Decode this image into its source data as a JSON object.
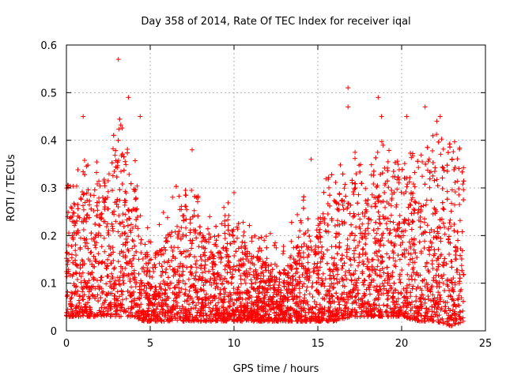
{
  "chart_data": {
    "type": "scatter",
    "title": "Day 358 of 2014, Rate Of TEC Index for receiver iqal",
    "xlabel": "GPS time / hours",
    "ylabel": "ROTI / TECUs",
    "xlim": [
      0,
      25
    ],
    "ylim": [
      0,
      0.6
    ],
    "xticks": [
      0,
      5,
      10,
      15,
      20,
      25
    ],
    "yticks": [
      0,
      0.1,
      0.2,
      0.3,
      0.4,
      0.5,
      0.6
    ],
    "xtick_labels": [
      "0",
      "5",
      "10",
      "15",
      "20",
      "25"
    ],
    "ytick_labels": [
      "0",
      "0.1",
      "0.2",
      "0.3",
      "0.4",
      "0.5",
      "0.6"
    ],
    "grid": true,
    "marker": "+",
    "marker_color": "#ff0000",
    "x_data_range": [
      0,
      23.7
    ],
    "outliers": [
      {
        "x": 3.1,
        "y": 0.57
      },
      {
        "x": 3.7,
        "y": 0.49
      },
      {
        "x": 4.4,
        "y": 0.45
      },
      {
        "x": 1.0,
        "y": 0.45
      },
      {
        "x": 7.5,
        "y": 0.38
      },
      {
        "x": 14.6,
        "y": 0.36
      },
      {
        "x": 16.8,
        "y": 0.51
      },
      {
        "x": 16.8,
        "y": 0.47
      },
      {
        "x": 18.6,
        "y": 0.49
      },
      {
        "x": 18.8,
        "y": 0.45
      },
      {
        "x": 20.3,
        "y": 0.45
      },
      {
        "x": 21.4,
        "y": 0.47
      },
      {
        "x": 22.3,
        "y": 0.45
      },
      {
        "x": 22.1,
        "y": 0.44
      },
      {
        "x": 10.0,
        "y": 0.29
      },
      {
        "x": 11.8,
        "y": 0.19
      }
    ],
    "envelope": [
      {
        "x": 0.0,
        "lo": 0.03,
        "hi": 0.25
      },
      {
        "x": 1.0,
        "lo": 0.03,
        "hi": 0.3
      },
      {
        "x": 2.0,
        "lo": 0.03,
        "hi": 0.32
      },
      {
        "x": 3.0,
        "lo": 0.03,
        "hi": 0.4
      },
      {
        "x": 4.0,
        "lo": 0.03,
        "hi": 0.33
      },
      {
        "x": 4.6,
        "lo": 0.02,
        "hi": 0.2
      },
      {
        "x": 5.0,
        "lo": 0.02,
        "hi": 0.15
      },
      {
        "x": 6.0,
        "lo": 0.02,
        "hi": 0.2
      },
      {
        "x": 7.0,
        "lo": 0.02,
        "hi": 0.28
      },
      {
        "x": 8.0,
        "lo": 0.02,
        "hi": 0.22
      },
      {
        "x": 9.0,
        "lo": 0.02,
        "hi": 0.2
      },
      {
        "x": 10.0,
        "lo": 0.02,
        "hi": 0.22
      },
      {
        "x": 11.0,
        "lo": 0.02,
        "hi": 0.16
      },
      {
        "x": 12.0,
        "lo": 0.02,
        "hi": 0.15
      },
      {
        "x": 13.0,
        "lo": 0.02,
        "hi": 0.13
      },
      {
        "x": 14.0,
        "lo": 0.02,
        "hi": 0.22
      },
      {
        "x": 15.0,
        "lo": 0.02,
        "hi": 0.24
      },
      {
        "x": 16.0,
        "lo": 0.02,
        "hi": 0.28
      },
      {
        "x": 17.0,
        "lo": 0.03,
        "hi": 0.32
      },
      {
        "x": 18.0,
        "lo": 0.03,
        "hi": 0.3
      },
      {
        "x": 19.0,
        "lo": 0.03,
        "hi": 0.36
      },
      {
        "x": 20.0,
        "lo": 0.03,
        "hi": 0.32
      },
      {
        "x": 21.0,
        "lo": 0.02,
        "hi": 0.33
      },
      {
        "x": 22.0,
        "lo": 0.02,
        "hi": 0.36
      },
      {
        "x": 23.0,
        "lo": 0.01,
        "hi": 0.33
      },
      {
        "x": 23.7,
        "lo": 0.02,
        "hi": 0.38
      }
    ]
  }
}
